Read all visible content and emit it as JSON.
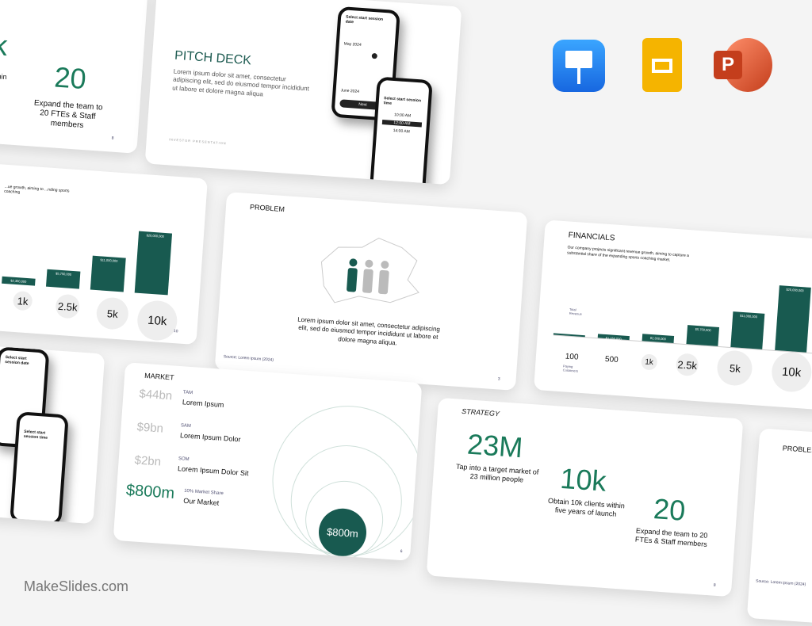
{
  "slide_strategy_partial": {
    "big1": "k",
    "caption1": "s within\nnch",
    "big2": "20",
    "caption2": "Expand the team to 20 FTEs & Staff members",
    "page": "8"
  },
  "slide_pitch": {
    "title": "PITCH DECK",
    "body": "Lorem ipsum dolor sit amet, consectetur adipiscing elit, sed do eiusmod tempor incididunt ut labore et dolore magna aliqua",
    "footer": "INVESTOR PRESENTATION",
    "phone1_title": "Select start session date",
    "phone1_month1": "May 2024",
    "phone1_month2": "June 2024",
    "phone1_button": "Next",
    "phone2_title": "Select start session time",
    "phone2_slots": [
      "10:00 AM",
      "12:00 AM",
      "14:00 AM"
    ]
  },
  "apps": [
    {
      "name": "keynote-icon",
      "color": "#1a8cf0"
    },
    {
      "name": "google-slides-icon",
      "color": "#f5b400"
    },
    {
      "name": "powerpoint-icon",
      "color": "#d04a27"
    }
  ],
  "slide_financials_left": {
    "desc": "...ue growth, aiming to ...nding sports coaching",
    "bars": [
      {
        "label": "$2,300,000",
        "value": 2300000
      },
      {
        "label": "$5,750,000",
        "value": 5750000
      },
      {
        "label": "$11,000,000",
        "value": 11000000
      },
      {
        "label": "$20,000,000",
        "value": 20000000
      }
    ],
    "customers": [
      "1k",
      "2.5k",
      "5k",
      "10k"
    ],
    "page": "10"
  },
  "slide_problem": {
    "title": "PROBLEM",
    "body": "Lorem ipsum dolor sit amet, consectetur adipiscing elit, sed do eiusmod tempor incididunt ut labore et dolore magna aliqua.",
    "source": "Source: Lorem ipsum (2024)",
    "page": "3"
  },
  "slide_financials": {
    "title": "FINANCIALS",
    "desc": "Our company projects significant revenue growth, aiming to capture a substantial share of the expanding sports coaching market.",
    "revenue_label": "Total Revenue",
    "customers_label": "Paying Customers",
    "bars": [
      {
        "label": "",
        "value": 230000
      },
      {
        "label": "$1,150,000",
        "value": 1150000
      },
      {
        "label": "$2,300,000",
        "value": 2300000
      },
      {
        "label": "$5,750,000",
        "value": 5750000
      },
      {
        "label": "$11,000,000",
        "value": 11000000
      },
      {
        "label": "$20,000,000",
        "value": 20000000
      }
    ],
    "customers": [
      "100",
      "500",
      "1k",
      "2.5k",
      "5k",
      "10k"
    ]
  },
  "slide_market": {
    "title": "MARKET",
    "rows": [
      {
        "value": "$44bn",
        "tag": "TAM",
        "label": "Lorem Ipsum"
      },
      {
        "value": "$9bn",
        "tag": "SAM",
        "label": "Lorem Ipsum Dolor"
      },
      {
        "value": "$2bn",
        "tag": "SOM",
        "label": "Lorem Ipsum Dolor Sit"
      },
      {
        "value": "$800m",
        "tag": "10% Market Share",
        "label": "Our Market"
      }
    ],
    "circle_value": "$800m",
    "page": "6"
  },
  "slide_strategy": {
    "title": "STRATEGY",
    "items": [
      {
        "big": "23M",
        "caption": "Tap into a target market of 23 million people"
      },
      {
        "big": "10k",
        "caption": "Obtain 10k clients within five years of launch"
      },
      {
        "big": "20",
        "caption": "Expand the team to 20 FTEs & Staff members"
      }
    ],
    "page": "8"
  },
  "slide_problem_partial": {
    "title": "PROBLEM",
    "source": "Source: Lorem ipsum (2024)"
  },
  "brand": "MakeSlides.com",
  "colors": {
    "accent": "#185a50",
    "green_text": "#1a7a5a"
  }
}
